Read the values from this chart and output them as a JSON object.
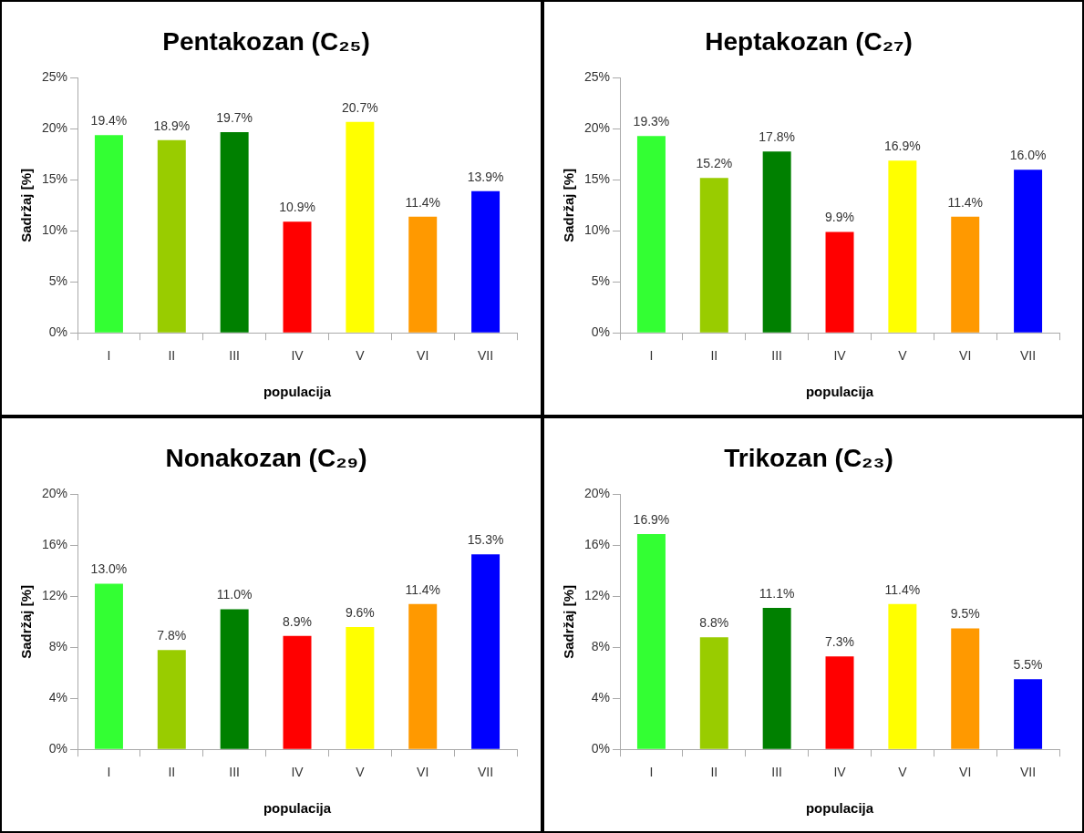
{
  "chart_data": [
    {
      "type": "bar",
      "title": "Pentakozan (C₂₅)",
      "xlabel": "populacija",
      "ylabel": "Sadržaj [%]",
      "categories": [
        "I",
        "II",
        "III",
        "IV",
        "V",
        "VI",
        "VII"
      ],
      "values": [
        19.4,
        18.9,
        19.7,
        10.9,
        20.7,
        11.4,
        13.9
      ],
      "colors": [
        "#33ff33",
        "#99cc00",
        "#008000",
        "#ff0000",
        "#ffff00",
        "#ff9900",
        "#0000ff"
      ],
      "value_labels": [
        "19.4%",
        "18.9%",
        "19.7%",
        "10.9%",
        "20.7%",
        "11.4%",
        "13.9%"
      ],
      "ylim": [
        0,
        25
      ],
      "yticks": [
        {
          "value": 0,
          "label": "0%"
        },
        {
          "value": 5,
          "label": "5%"
        },
        {
          "value": 10,
          "label": "10%"
        },
        {
          "value": 15,
          "label": "15%"
        },
        {
          "value": 20,
          "label": "20%"
        },
        {
          "value": 25,
          "label": "25%"
        }
      ],
      "grid": false,
      "legend": false
    },
    {
      "type": "bar",
      "title": "Heptakozan (C₂₇)",
      "xlabel": "populacija",
      "ylabel": "Sadržaj [%]",
      "categories": [
        "I",
        "II",
        "III",
        "IV",
        "V",
        "VI",
        "VII"
      ],
      "values": [
        19.3,
        15.2,
        17.8,
        9.9,
        16.9,
        11.4,
        16.0
      ],
      "colors": [
        "#33ff33",
        "#99cc00",
        "#008000",
        "#ff0000",
        "#ffff00",
        "#ff9900",
        "#0000ff"
      ],
      "value_labels": [
        "19.3%",
        "15.2%",
        "17.8%",
        "9.9%",
        "16.9%",
        "11.4%",
        "16.0%"
      ],
      "ylim": [
        0,
        25
      ],
      "yticks": [
        {
          "value": 0,
          "label": "0%"
        },
        {
          "value": 5,
          "label": "5%"
        },
        {
          "value": 10,
          "label": "10%"
        },
        {
          "value": 15,
          "label": "15%"
        },
        {
          "value": 20,
          "label": "20%"
        },
        {
          "value": 25,
          "label": "25%"
        }
      ],
      "grid": false,
      "legend": false
    },
    {
      "type": "bar",
      "title": "Nonakozan (C₂₉)",
      "xlabel": "populacija",
      "ylabel": "Sadržaj [%]",
      "categories": [
        "I",
        "II",
        "III",
        "IV",
        "V",
        "VI",
        "VII"
      ],
      "values": [
        13.0,
        7.8,
        11.0,
        8.9,
        9.6,
        11.4,
        15.3
      ],
      "colors": [
        "#33ff33",
        "#99cc00",
        "#008000",
        "#ff0000",
        "#ffff00",
        "#ff9900",
        "#0000ff"
      ],
      "value_labels": [
        "13.0%",
        "7.8%",
        "11.0%",
        "8.9%",
        "9.6%",
        "11.4%",
        "15.3%"
      ],
      "ylim": [
        0,
        20
      ],
      "yticks": [
        {
          "value": 0,
          "label": "0%"
        },
        {
          "value": 4,
          "label": "4%"
        },
        {
          "value": 8,
          "label": "8%"
        },
        {
          "value": 12,
          "label": "12%"
        },
        {
          "value": 16,
          "label": "16%"
        },
        {
          "value": 20,
          "label": "20%"
        }
      ],
      "grid": false,
      "legend": false
    },
    {
      "type": "bar",
      "title": "Trikozan (C₂₃)",
      "xlabel": "populacija",
      "ylabel": "Sadržaj [%]",
      "categories": [
        "I",
        "II",
        "III",
        "IV",
        "V",
        "VI",
        "VII"
      ],
      "values": [
        16.9,
        8.8,
        11.1,
        7.3,
        11.4,
        9.5,
        5.5
      ],
      "colors": [
        "#33ff33",
        "#99cc00",
        "#008000",
        "#ff0000",
        "#ffff00",
        "#ff9900",
        "#0000ff"
      ],
      "value_labels": [
        "16.9%",
        "8.8%",
        "11.1%",
        "7.3%",
        "11.4%",
        "9.5%",
        "5.5%"
      ],
      "ylim": [
        0,
        20
      ],
      "yticks": [
        {
          "value": 0,
          "label": "0%"
        },
        {
          "value": 4,
          "label": "4%"
        },
        {
          "value": 8,
          "label": "8%"
        },
        {
          "value": 12,
          "label": "12%"
        },
        {
          "value": 16,
          "label": "16%"
        },
        {
          "value": 20,
          "label": "20%"
        }
      ],
      "grid": false,
      "legend": false
    }
  ]
}
